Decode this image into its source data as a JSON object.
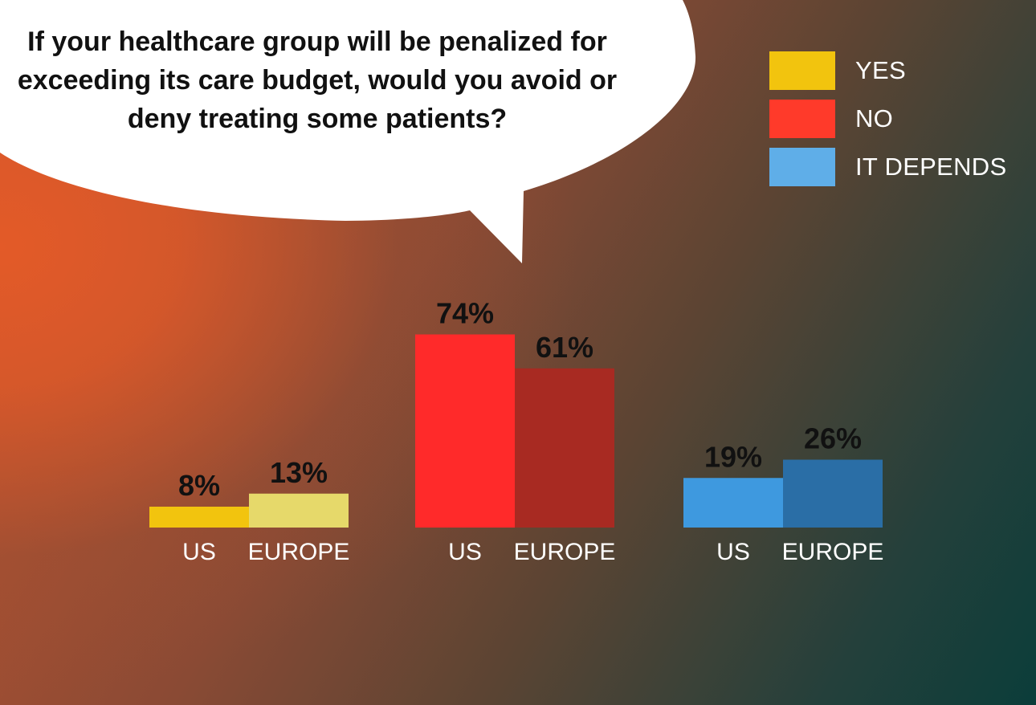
{
  "title": "If your healthcare group will be penalized for exceeding its care budget, would you avoid or deny treating some patients?",
  "colors": {
    "yes_us": "#f2c40e",
    "yes_europe": "#e6d96a",
    "no_us": "#ff2a2a",
    "no_europe": "#a82a22",
    "depends_us": "#3e99df",
    "depends_europe": "#2a6ea6",
    "label_text": "#111111",
    "axis_text": "#ffffff"
  },
  "legend": [
    {
      "label": "YES",
      "color": "#f2c40e"
    },
    {
      "label": "NO",
      "color": "#ff3a2a"
    },
    {
      "label": "IT DEPENDS",
      "color": "#5faee8"
    }
  ],
  "chart_data": {
    "type": "bar",
    "title": "If your healthcare group will be penalized for exceeding its care budget, would you avoid or deny treating some patients?",
    "groups": [
      "YES",
      "NO",
      "IT DEPENDS"
    ],
    "categories": [
      "US",
      "EUROPE"
    ],
    "series": [
      {
        "name": "YES",
        "values": [
          8,
          13
        ],
        "labels": [
          "8%",
          "13%"
        ]
      },
      {
        "name": "NO",
        "values": [
          74,
          61
        ],
        "labels": [
          "74%",
          "61%"
        ]
      },
      {
        "name": "IT DEPENDS",
        "values": [
          19,
          26
        ],
        "labels": [
          "19%",
          "26%"
        ]
      }
    ],
    "unit": "%",
    "ylim": [
      0,
      100
    ],
    "grid": false,
    "legend_position": "top-right"
  }
}
